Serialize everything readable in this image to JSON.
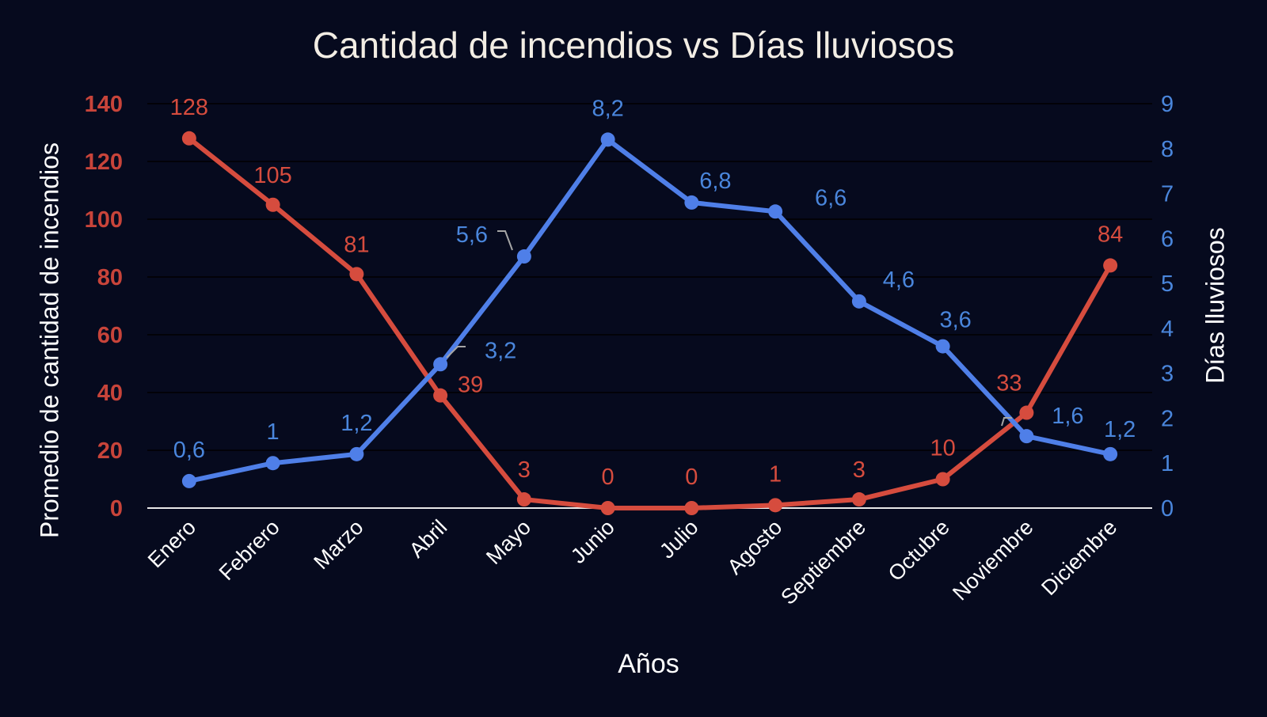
{
  "chart_data": {
    "type": "line",
    "title": "Cantidad de incendios vs Días lluviosos",
    "xlabel": "Años",
    "ylabel": "Promedio de cantidad de incendios",
    "ylabel_right": "Días lluviosos",
    "categories": [
      "Enero",
      "Febrero",
      "Marzo",
      "Abril",
      "Mayo",
      "Junio",
      "Julio",
      "Agosto",
      "Septiembre",
      "Octubre",
      "Noviembre",
      "Diciembre"
    ],
    "ylim": [
      0,
      140
    ],
    "ylim_right": [
      0,
      9
    ],
    "yticks": [
      "0",
      "20",
      "40",
      "60",
      "80",
      "100",
      "120",
      "140"
    ],
    "yticks_right": [
      "0",
      "1",
      "2",
      "3",
      "4",
      "5",
      "6",
      "7",
      "8",
      "9"
    ],
    "grid": true,
    "series": [
      {
        "axis": "left",
        "color": "#d64c3e",
        "values": [
          128,
          105,
          81,
          39,
          3,
          0,
          0,
          1,
          3,
          10,
          33,
          84
        ],
        "labels": [
          "128",
          "105",
          "81",
          "39",
          "3",
          "0",
          "0",
          "1",
          "3",
          "10",
          "33",
          "84"
        ]
      },
      {
        "axis": "right",
        "color": "#4f7fe8",
        "label_color": "#4a86dc",
        "values": [
          0.6,
          1,
          1.2,
          3.2,
          5.6,
          8.2,
          6.8,
          6.6,
          4.6,
          3.6,
          1.6,
          1.2
        ],
        "labels": [
          "0,6",
          "1",
          "1,2",
          "3,2",
          "5,6",
          "8,2",
          "6,8",
          "6,6",
          "4,6",
          "3,6",
          "1,6",
          "1,2"
        ]
      }
    ]
  }
}
